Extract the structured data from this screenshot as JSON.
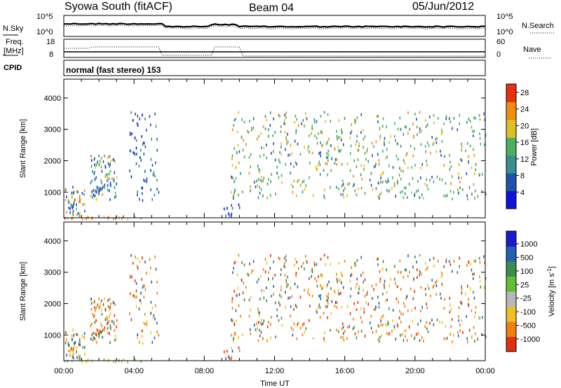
{
  "header": {
    "station": "Syowa South (fitACF)",
    "beam": "Beam 04",
    "date": "05/Jun/2012"
  },
  "top_panels": {
    "nsky_label": "N.Sky",
    "nsearch_label": "N.Search",
    "noise_ticks": [
      "10^5",
      "10^0"
    ],
    "noise_ticks_right": [
      "10^5",
      "10^0"
    ],
    "freq_label_1": "Freq.",
    "freq_label_2": "[MHz]",
    "freq_ticks": [
      "18",
      "8"
    ],
    "nave_label": "Nave",
    "nave_ticks": [
      "60",
      "0"
    ],
    "cpid_label": "CPID",
    "mode_text": "normal (fast stereo) 153"
  },
  "chart_data": [
    {
      "type": "heatmap",
      "title": "",
      "panel": "power",
      "xlabel": "",
      "ylabel": "Slant Range [km]",
      "x_range_hours": [
        0,
        24
      ],
      "ylim": [
        180,
        4600
      ],
      "yticks": [
        "1000",
        "2000",
        "3000",
        "4000"
      ],
      "colorbar": {
        "label": "Power [dB]",
        "ticks": [
          "4",
          "8",
          "12",
          "16",
          "20",
          "24",
          "28"
        ],
        "range": [
          0,
          30
        ],
        "colors": [
          "#1010e0",
          "#2050b0",
          "#3a8e8e",
          "#4cb060",
          "#e0c020",
          "#f08c10",
          "#e83010"
        ]
      },
      "regions": [
        {
          "t": [
            0.0,
            1.2
          ],
          "r": [
            250,
            1200
          ],
          "dominant": "mixed-high"
        },
        {
          "t": [
            1.5,
            3.0
          ],
          "r": [
            800,
            2200
          ],
          "dominant": "mixed-high"
        },
        {
          "t": [
            3.7,
            5.4
          ],
          "r": [
            700,
            3600
          ],
          "dominant": "blue"
        },
        {
          "t": [
            8.8,
            10.0
          ],
          "r": [
            250,
            1000
          ],
          "dominant": "blue"
        },
        {
          "t": [
            9.5,
            24.0
          ],
          "r": [
            800,
            3600
          ],
          "dominant": "green-orange"
        },
        {
          "t": [
            0.0,
            4.5
          ],
          "r": [
            180,
            260
          ],
          "dominant": "ground-scatter"
        }
      ]
    },
    {
      "type": "heatmap",
      "title": "",
      "panel": "velocity",
      "xlabel": "Time UT",
      "ylabel": "Slant Range [km]",
      "x_range_hours": [
        0,
        24
      ],
      "xticks": [
        "00:00",
        "04:00",
        "08:00",
        "12:00",
        "16:00",
        "20:00",
        "00:00"
      ],
      "ylim": [
        180,
        4600
      ],
      "yticks": [
        "1000",
        "2000",
        "3000",
        "4000"
      ],
      "colorbar": {
        "label": "Velocity [m s^-1]",
        "ticks": [
          "1000",
          "500",
          "100",
          "25",
          "-25",
          "-100",
          "-500",
          "-1000"
        ],
        "colors": [
          "#1a1ad0",
          "#2460b0",
          "#3c8c50",
          "#60c030",
          "#b8b8b8",
          "#f0c020",
          "#f08010",
          "#e03010"
        ]
      },
      "regions": [
        {
          "t": [
            0.0,
            1.2
          ],
          "r": [
            250,
            1200
          ],
          "dominant": "mixed"
        },
        {
          "t": [
            1.5,
            3.0
          ],
          "r": [
            800,
            2200
          ],
          "dominant": "red-orange"
        },
        {
          "t": [
            3.7,
            5.4
          ],
          "r": [
            700,
            3600
          ],
          "dominant": "orange"
        },
        {
          "t": [
            8.8,
            10.0
          ],
          "r": [
            250,
            1000
          ],
          "dominant": "orange"
        },
        {
          "t": [
            9.5,
            24.0
          ],
          "r": [
            800,
            3600
          ],
          "dominant": "red-orange"
        },
        {
          "t": [
            0.0,
            4.5
          ],
          "r": [
            180,
            260
          ],
          "dominant": "ground-scatter"
        }
      ]
    }
  ]
}
